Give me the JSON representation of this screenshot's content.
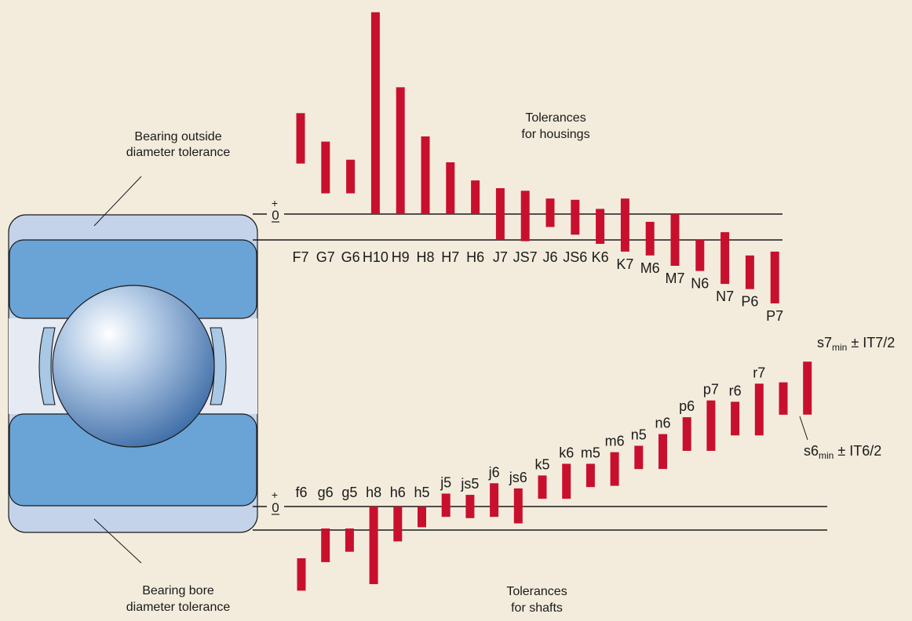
{
  "captions": {
    "outside": [
      "Bearing outside",
      "diameter tolerance"
    ],
    "bore": [
      "Bearing bore",
      "diameter tolerance"
    ],
    "housings": [
      "Tolerances",
      "for housings"
    ],
    "shafts": [
      "Tolerances",
      "for shafts"
    ]
  },
  "zero": {
    "plus": "+",
    "zero": "0"
  },
  "annotations": {
    "s7": {
      "main": "s7",
      "sub": "min",
      "rest": " ± IT7/2"
    },
    "s6": {
      "main": "s6",
      "sub": "min",
      "rest": " ± IT6/2"
    }
  },
  "colors": {
    "bar": "#c8102e",
    "background": "#f3ecdc",
    "ring_outer": "#c5d3ea",
    "ring_inner": "#6aa3d6",
    "ball": "#8fb3dc"
  },
  "housing_tolerances": [
    {
      "label": "F7",
      "top": 3.9,
      "bottom": 1.95
    },
    {
      "label": "G7",
      "top": 2.8,
      "bottom": 0.8
    },
    {
      "label": "G6",
      "top": 2.1,
      "bottom": 0.8
    },
    {
      "label": "H10",
      "top": 7.8,
      "bottom": 0
    },
    {
      "label": "H9",
      "top": 4.9,
      "bottom": 0
    },
    {
      "label": "H8",
      "top": 3.0,
      "bottom": 0
    },
    {
      "label": "H7",
      "top": 2.0,
      "bottom": 0
    },
    {
      "label": "H6",
      "top": 1.3,
      "bottom": 0
    },
    {
      "label": "J7",
      "top": 1.0,
      "bottom": -1.0
    },
    {
      "label": "JS7",
      "top": 0.9,
      "bottom": -1.05
    },
    {
      "label": "J6",
      "top": 0.6,
      "bottom": -0.5
    },
    {
      "label": "JS6",
      "top": 0.55,
      "bottom": -0.8
    },
    {
      "label": "K6",
      "top": 0.2,
      "bottom": -1.15
    },
    {
      "label": "K7",
      "top": 0.6,
      "bottom": -1.45
    },
    {
      "label": "M6",
      "top": -0.3,
      "bottom": -1.6
    },
    {
      "label": "M7",
      "top": 0,
      "bottom": -2.0
    },
    {
      "label": "N6",
      "top": -1.0,
      "bottom": -2.2
    },
    {
      "label": "N7",
      "top": -0.7,
      "bottom": -2.7
    },
    {
      "label": "P6",
      "top": -1.6,
      "bottom": -2.9
    },
    {
      "label": "P7",
      "top": -1.45,
      "bottom": -3.45
    }
  ],
  "shaft_tolerances": [
    {
      "label": "f6",
      "top": -2.0,
      "bottom": -3.25
    },
    {
      "label": "g6",
      "top": -0.85,
      "bottom": -2.15
    },
    {
      "label": "g5",
      "top": -0.85,
      "bottom": -1.75
    },
    {
      "label": "h8",
      "top": 0,
      "bottom": -3.0
    },
    {
      "label": "h6",
      "top": 0,
      "bottom": -1.35
    },
    {
      "label": "h5",
      "top": 0,
      "bottom": -0.8
    },
    {
      "label": "j5",
      "top": 0.5,
      "bottom": -0.4
    },
    {
      "label": "js5",
      "top": 0.45,
      "bottom": -0.45
    },
    {
      "label": "j6",
      "top": 0.9,
      "bottom": -0.4
    },
    {
      "label": "js6",
      "top": 0.7,
      "bottom": -0.65
    },
    {
      "label": "k5",
      "top": 1.2,
      "bottom": 0.3
    },
    {
      "label": "k6",
      "top": 1.65,
      "bottom": 0.3
    },
    {
      "label": "m5",
      "top": 1.65,
      "bottom": 0.75
    },
    {
      "label": "m6",
      "top": 2.1,
      "bottom": 0.8
    },
    {
      "label": "n5",
      "top": 2.35,
      "bottom": 1.45
    },
    {
      "label": "n6",
      "top": 2.8,
      "bottom": 1.45
    },
    {
      "label": "p6",
      "top": 3.45,
      "bottom": 2.15
    },
    {
      "label": "p7",
      "top": 4.1,
      "bottom": 2.15
    },
    {
      "label": "r6",
      "top": 4.05,
      "bottom": 2.75
    },
    {
      "label": "r7",
      "top": 4.75,
      "bottom": 2.75
    },
    {
      "label": "s6",
      "top": 4.8,
      "bottom": 3.55
    },
    {
      "label": "s7",
      "top": 5.6,
      "bottom": 3.55
    }
  ]
}
